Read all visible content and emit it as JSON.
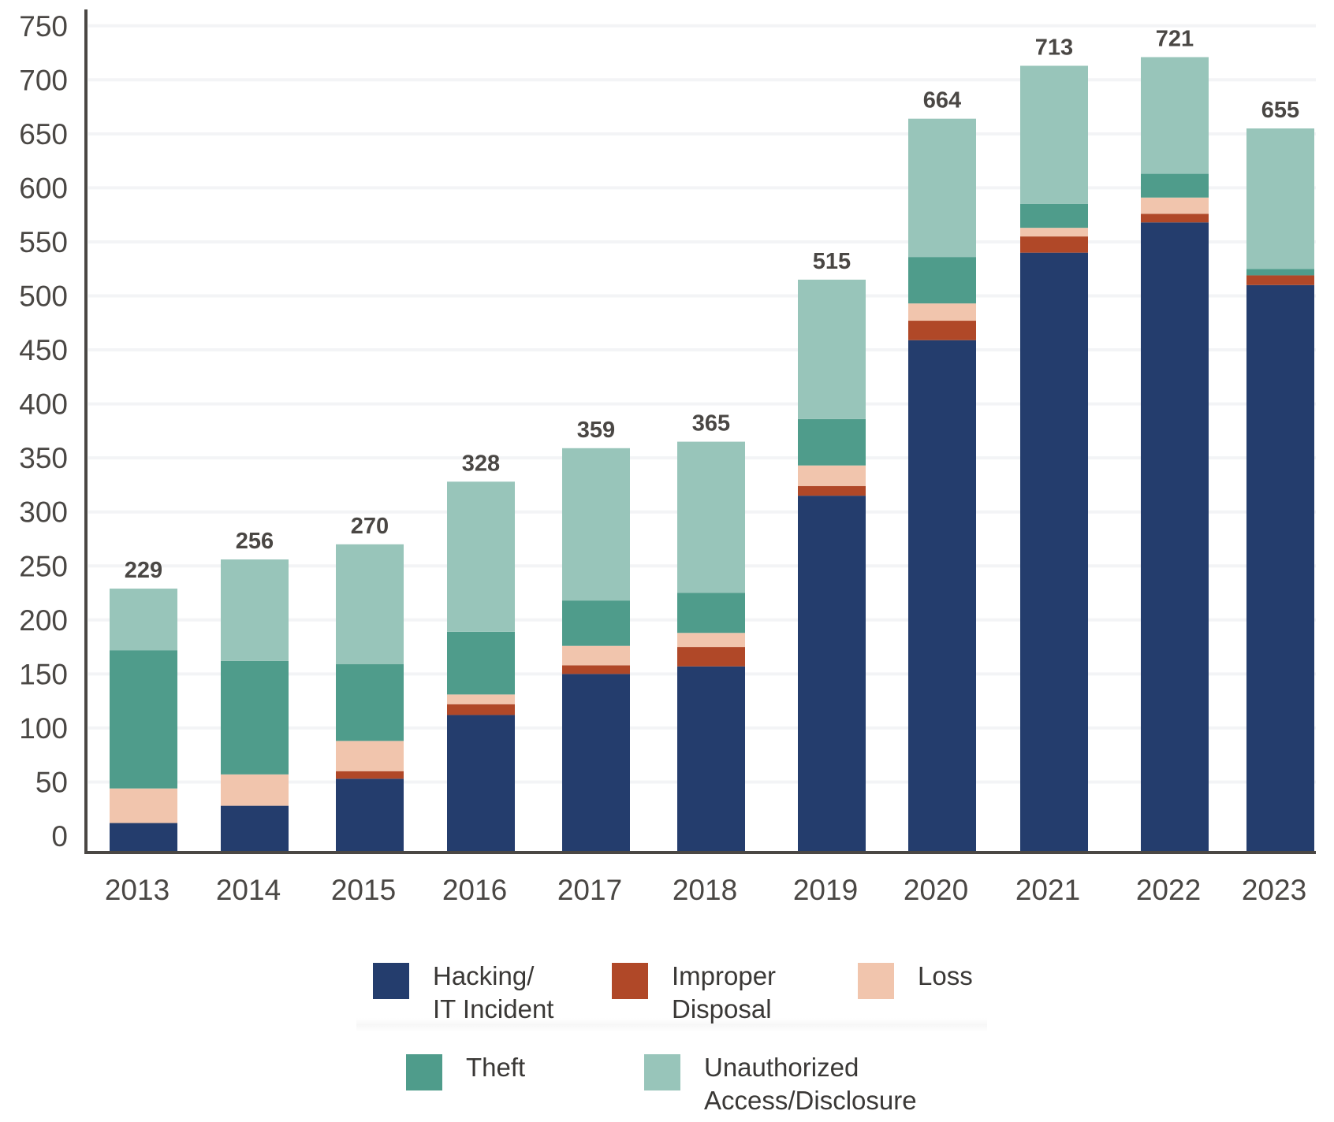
{
  "chart_data": {
    "type": "bar",
    "stacked": true,
    "title": "",
    "xlabel": "",
    "ylabel": "",
    "ylim": [
      0,
      750
    ],
    "yticks": [
      0,
      50,
      100,
      150,
      200,
      250,
      300,
      350,
      400,
      450,
      500,
      550,
      600,
      650,
      700,
      750
    ],
    "grid": true,
    "legend_position": "bottom-center",
    "categories": [
      "2013",
      "2014",
      "2015",
      "2016",
      "2017",
      "2018",
      "2019",
      "2020",
      "2021",
      "2022",
      "2023"
    ],
    "totals": [
      229,
      256,
      270,
      328,
      359,
      365,
      515,
      664,
      713,
      721,
      655
    ],
    "series": [
      {
        "name": "Hacking/\nIT Incident",
        "key": "hacking",
        "color": "#243d6d",
        "values": [
          12,
          28,
          53,
          112,
          150,
          157,
          315,
          459,
          540,
          568,
          510
        ]
      },
      {
        "name": "Improper\nDisposal",
        "key": "improper",
        "color": "#b04828",
        "values": [
          0,
          0,
          7,
          10,
          8,
          18,
          9,
          18,
          15,
          8,
          9
        ]
      },
      {
        "name": "Loss",
        "key": "loss",
        "color": "#f1c5ad",
        "values": [
          32,
          29,
          28,
          9,
          18,
          13,
          19,
          16,
          8,
          15,
          0
        ]
      },
      {
        "name": "Theft",
        "key": "theft",
        "color": "#4f9c8b",
        "values": [
          128,
          105,
          71,
          58,
          42,
          37,
          43,
          43,
          22,
          22,
          6
        ]
      },
      {
        "name": "Unauthorized\nAccess/Disclosure",
        "key": "unauthorized",
        "color": "#98c5ba",
        "values": [
          57,
          94,
          111,
          139,
          141,
          140,
          129,
          128,
          128,
          108,
          130
        ]
      }
    ]
  },
  "legend": {
    "items": [
      {
        "label": "Hacking/\nIT Incident",
        "color": "#243d6d"
      },
      {
        "label": "Improper\nDisposal",
        "color": "#b04828"
      },
      {
        "label": "Loss",
        "color": "#f1c5ad"
      },
      {
        "label": "Theft",
        "color": "#4f9c8b"
      },
      {
        "label": "Unauthorized\nAccess/Disclosure",
        "color": "#98c5ba"
      }
    ]
  },
  "colors": {
    "axis": "#4a4744",
    "gridline": "#f3f4f6",
    "text": "#4a4744"
  }
}
